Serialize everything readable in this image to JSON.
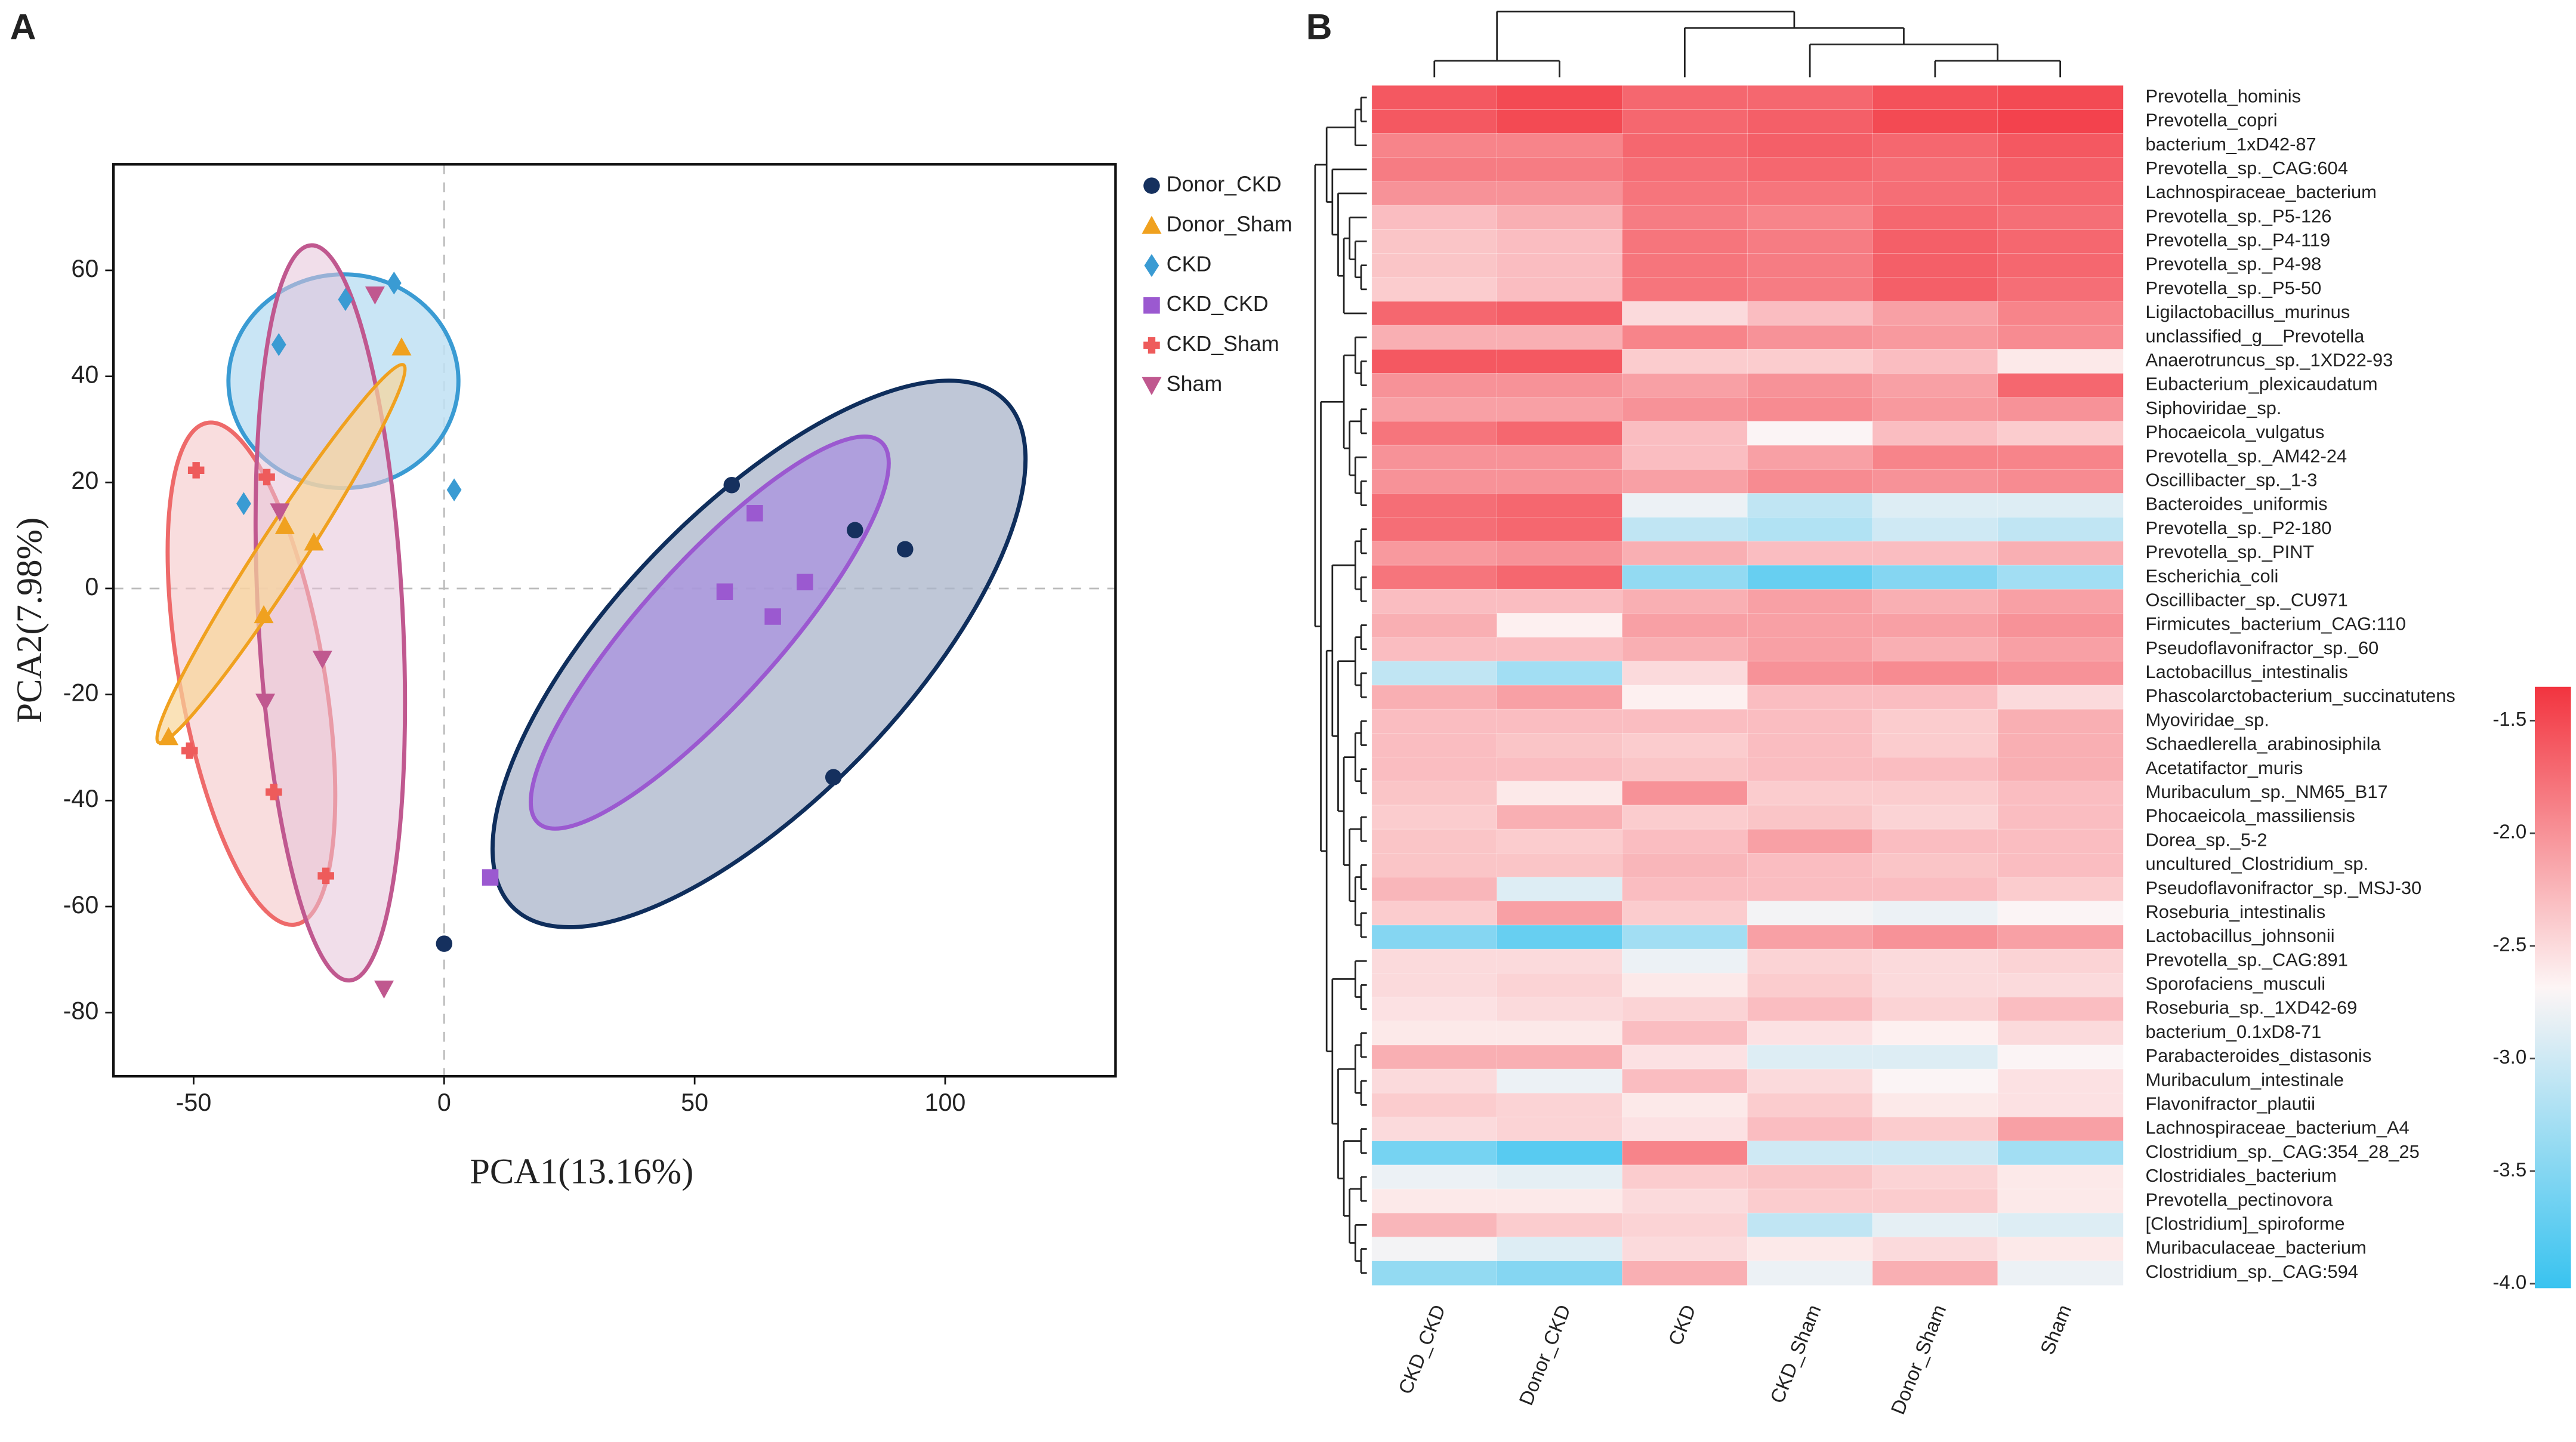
{
  "chart_data": [
    {
      "type": "scatter",
      "panel": "A",
      "xlabel": "PCA1(13.16%)",
      "ylabel": "PCA2(7.98%)",
      "xlim": [
        -66,
        134
      ],
      "ylim": [
        -92,
        80
      ],
      "xticks": [
        -50,
        0,
        50,
        100
      ],
      "yticks": [
        -80,
        -60,
        -40,
        -20,
        0,
        20,
        40,
        60
      ],
      "series": [
        {
          "name": "Donor_CKD",
          "color": "#15305e",
          "marker": "circle",
          "x": [
            57.4,
            82,
            92,
            77.7,
            0
          ],
          "y": [
            19.5,
            11,
            7.4,
            -35.6,
            -67
          ]
        },
        {
          "name": "Donor_Sham",
          "color": "#f0a11f",
          "marker": "triangle",
          "x": [
            -8.5,
            -31.8,
            -26,
            -36,
            -55
          ],
          "y": [
            45.5,
            11.8,
            8.7,
            -5,
            -28
          ]
        },
        {
          "name": "CKD",
          "color": "#3a9bd3",
          "marker": "diamond",
          "x": [
            -10,
            -19.7,
            -33,
            -40,
            2
          ],
          "y": [
            57.6,
            54.5,
            46,
            16,
            18.6
          ]
        },
        {
          "name": "CKD_CKD",
          "color": "#9b59d0",
          "marker": "square",
          "x": [
            62,
            72,
            56,
            65.6,
            9.2
          ],
          "y": [
            14.2,
            1.2,
            -0.6,
            -5.3,
            -54.5
          ]
        },
        {
          "name": "CKD_Sham",
          "color": "#ee5b5b",
          "marker": "plus",
          "x": [
            -49.5,
            -35.4,
            -50.8,
            -34,
            -23.6
          ],
          "y": [
            22.3,
            21,
            -30.6,
            -38.4,
            -54.2
          ]
        },
        {
          "name": "Sham",
          "color": "#c0588f",
          "marker": "triangle-down",
          "x": [
            -13.8,
            -32.8,
            -24.3,
            -35.7,
            -12
          ],
          "y": [
            55.4,
            14.5,
            -13.3,
            -21.4,
            -75.5
          ]
        }
      ]
    },
    {
      "type": "heatmap",
      "panel": "B",
      "columns": [
        "CKD_CKD",
        "Donor_CKD",
        "CKD",
        "CKD_Sham",
        "Donor_Sham",
        "Sham"
      ],
      "rows": [
        "Prevotella_hominis",
        "Prevotella_copri",
        "bacterium_1xD42-87",
        "Prevotella_sp._CAG:604",
        "Lachnospiraceae_bacterium",
        "Prevotella_sp._P5-126",
        "Prevotella_sp._P4-119",
        "Prevotella_sp._P4-98",
        "Prevotella_sp._P5-50",
        "Ligilactobacillus_murinus",
        "unclassified_g__Prevotella",
        "Anaerotruncus_sp._1XD22-93",
        "Eubacterium_plexicaudatum",
        "Siphoviridae_sp.",
        "Phocaeicola_vulgatus",
        "Prevotella_sp._AM42-24",
        "Oscillibacter_sp._1-3",
        "Bacteroides_uniformis",
        "Prevotella_sp._P2-180",
        "Prevotella_sp._PINT",
        "Escherichia_coli",
        "Oscillibacter_sp._CU971",
        "Firmicutes_bacterium_CAG:110",
        "Pseudoflavonifractor_sp._60",
        "Lactobacillus_intestinalis",
        "Phascolarctobacterium_succinatutens",
        "Myoviridae_sp.",
        "Schaedlerella_arabinosiphila",
        "Acetatifactor_muris",
        "Muribaculum_sp._NM65_B17",
        "Phocaeicola_massiliensis",
        "Dorea_sp._5-2",
        "uncultured_Clostridium_sp.",
        "Pseudoflavonifractor_sp._MSJ-30",
        "Roseburia_intestinalis",
        "Lactobacillus_johnsonii",
        "Prevotella_sp._CAG:891",
        "Sporofaciens_musculi",
        "Roseburia_sp._1XD42-69",
        "bacterium_0.1xD8-71",
        "Parabacteroides_distasonis",
        "Muribaculum_intestinale",
        "Flavonifractor_plautii",
        "Lachnospiraceae_bacterium_A4",
        "Clostridium_sp._CAG:354_28_25",
        "Clostridiales_bacterium",
        "Prevotella_pectinovora",
        "[Clostridium]_spiroforme",
        "Muribaculaceae_bacterium",
        "Clostridium_sp._CAG:594"
      ],
      "row_label_colors": [
        "#222",
        "#222",
        "#222",
        "#222",
        "#222",
        "#222",
        "#222",
        "#222",
        "#222",
        "#222",
        "#222",
        "#2f7fb8",
        "#222",
        "#222",
        "#222",
        "#222",
        "#222",
        "#2f7fb8",
        "#222",
        "#222",
        "#222",
        "#222",
        "#222",
        "#222",
        "#b8262c",
        "#222",
        "#222",
        "#222",
        "#222",
        "#222",
        "#222",
        "#222",
        "#222",
        "#222",
        "#222",
        "#b8262c",
        "#222",
        "#222",
        "#222",
        "#222",
        "#222",
        "#222",
        "#222",
        "#222",
        "#222",
        "#222",
        "#222",
        "#222",
        "#222",
        "#222"
      ],
      "values": [
        [
          -1.6,
          -1.5,
          -1.7,
          -1.7,
          -1.55,
          -1.5
        ],
        [
          -1.6,
          -1.5,
          -1.7,
          -1.65,
          -1.5,
          -1.45
        ],
        [
          -1.9,
          -1.9,
          -1.7,
          -1.65,
          -1.7,
          -1.6
        ],
        [
          -1.85,
          -1.85,
          -1.75,
          -1.7,
          -1.75,
          -1.65
        ],
        [
          -2.0,
          -2.0,
          -1.8,
          -1.8,
          -1.75,
          -1.7
        ],
        [
          -2.3,
          -2.2,
          -1.85,
          -1.9,
          -1.7,
          -1.75
        ],
        [
          -2.35,
          -2.3,
          -1.8,
          -1.85,
          -1.65,
          -1.7
        ],
        [
          -2.35,
          -2.3,
          -1.8,
          -1.85,
          -1.65,
          -1.7
        ],
        [
          -2.4,
          -2.3,
          -1.8,
          -1.85,
          -1.65,
          -1.75
        ],
        [
          -1.7,
          -1.65,
          -2.5,
          -2.3,
          -2.1,
          -1.9
        ],
        [
          -2.2,
          -2.2,
          -1.9,
          -2.0,
          -2.05,
          -1.95
        ],
        [
          -1.6,
          -1.6,
          -2.4,
          -2.4,
          -2.3,
          -2.6
        ],
        [
          -2.0,
          -2.0,
          -2.1,
          -2.0,
          -2.1,
          -1.7
        ],
        [
          -2.1,
          -2.1,
          -2.0,
          -1.95,
          -2.05,
          -2.0
        ],
        [
          -1.8,
          -1.7,
          -2.3,
          -2.7,
          -2.3,
          -2.4
        ],
        [
          -2.0,
          -2.0,
          -2.3,
          -2.1,
          -1.9,
          -1.9
        ],
        [
          -2.0,
          -2.0,
          -2.1,
          -1.95,
          -2.0,
          -1.95
        ],
        [
          -1.75,
          -1.7,
          -2.8,
          -3.1,
          -2.9,
          -2.9
        ],
        [
          -1.75,
          -1.7,
          -3.1,
          -3.2,
          -3.0,
          -3.1
        ],
        [
          -2.05,
          -2.0,
          -2.2,
          -2.3,
          -2.3,
          -2.2
        ],
        [
          -1.8,
          -1.7,
          -3.4,
          -3.7,
          -3.5,
          -3.3
        ],
        [
          -2.3,
          -2.3,
          -2.2,
          -2.1,
          -2.2,
          -2.1
        ],
        [
          -2.2,
          -2.65,
          -2.1,
          -2.1,
          -2.1,
          -2.0
        ],
        [
          -2.3,
          -2.3,
          -2.2,
          -2.1,
          -2.2,
          -2.1
        ],
        [
          -3.1,
          -3.3,
          -2.5,
          -2.0,
          -1.95,
          -2.0
        ],
        [
          -2.2,
          -2.1,
          -2.65,
          -2.3,
          -2.3,
          -2.5
        ],
        [
          -2.3,
          -2.3,
          -2.3,
          -2.3,
          -2.4,
          -2.2
        ],
        [
          -2.3,
          -2.35,
          -2.4,
          -2.3,
          -2.4,
          -2.2
        ],
        [
          -2.3,
          -2.3,
          -2.35,
          -2.3,
          -2.3,
          -2.2
        ],
        [
          -2.35,
          -2.6,
          -2.0,
          -2.4,
          -2.4,
          -2.3
        ],
        [
          -2.4,
          -2.2,
          -2.4,
          -2.35,
          -2.45,
          -2.3
        ],
        [
          -2.35,
          -2.4,
          -2.3,
          -2.1,
          -2.3,
          -2.3
        ],
        [
          -2.35,
          -2.35,
          -2.25,
          -2.3,
          -2.35,
          -2.3
        ],
        [
          -2.25,
          -2.9,
          -2.3,
          -2.3,
          -2.3,
          -2.4
        ],
        [
          -2.4,
          -2.1,
          -2.4,
          -2.75,
          -2.8,
          -2.7
        ],
        [
          -3.5,
          -3.7,
          -3.3,
          -2.1,
          -2.0,
          -2.1
        ],
        [
          -2.5,
          -2.5,
          -2.8,
          -2.45,
          -2.5,
          -2.45
        ],
        [
          -2.5,
          -2.45,
          -2.6,
          -2.4,
          -2.5,
          -2.5
        ],
        [
          -2.55,
          -2.5,
          -2.45,
          -2.3,
          -2.45,
          -2.3
        ],
        [
          -2.6,
          -2.6,
          -2.3,
          -2.55,
          -2.65,
          -2.5
        ],
        [
          -2.2,
          -2.2,
          -2.55,
          -2.9,
          -2.9,
          -2.7
        ],
        [
          -2.5,
          -2.8,
          -2.3,
          -2.5,
          -2.7,
          -2.55
        ],
        [
          -2.4,
          -2.45,
          -2.6,
          -2.4,
          -2.6,
          -2.55
        ],
        [
          -2.5,
          -2.45,
          -2.55,
          -2.3,
          -2.4,
          -2.1
        ],
        [
          -3.6,
          -3.8,
          -1.9,
          -3.0,
          -3.0,
          -3.3
        ],
        [
          -2.8,
          -2.85,
          -2.4,
          -2.35,
          -2.45,
          -2.6
        ],
        [
          -2.6,
          -2.6,
          -2.5,
          -2.4,
          -2.4,
          -2.6
        ],
        [
          -2.25,
          -2.4,
          -2.45,
          -3.1,
          -2.85,
          -2.9
        ],
        [
          -2.75,
          -2.9,
          -2.5,
          -2.6,
          -2.5,
          -2.6
        ],
        [
          -3.4,
          -3.5,
          -2.2,
          -2.8,
          -2.2,
          -2.8
        ]
      ],
      "zlim": [
        -4.02,
        -1.35
      ],
      "colors": [
        "#38c3f0",
        "#fdf5f5",
        "#f2343f"
      ],
      "zticks": [
        -1.5,
        {
          "value": -2,
          "label": "-2.0"
        },
        -2.5,
        {
          "value": -3,
          "label": "-3.0"
        },
        -3.5,
        {
          "value": -4,
          "label": "-4.0"
        }
      ]
    }
  ]
}
